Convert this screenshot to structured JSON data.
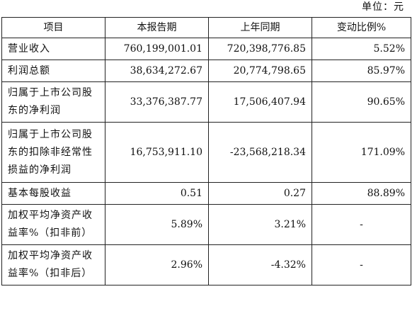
{
  "unit_label": "单位：元",
  "table": {
    "headers": [
      "项目",
      "本报告期",
      "上年同期",
      "变动比例%"
    ],
    "rows": [
      {
        "label_lines": [
          "营业收入"
        ],
        "current": "760,199,001.01",
        "previous": "720,398,776.85",
        "change": "5.52%"
      },
      {
        "label_lines": [
          "利润总额"
        ],
        "current": "38,634,272.67",
        "previous": "20,774,798.65",
        "change": "85.97%"
      },
      {
        "label_lines": [
          "归属于上市公司股",
          "东的净利润"
        ],
        "current": "33,376,387.77",
        "previous": "17,506,407.94",
        "change": "90.65%"
      },
      {
        "label_lines": [
          "归属于上市公司股",
          "东的扣除非经常性",
          "损益的净利润"
        ],
        "current": "16,753,911.10",
        "previous": "-23,568,218.34",
        "change": "171.09%"
      },
      {
        "label_lines": [
          "基本每股收益"
        ],
        "current": "0.51",
        "previous": "0.27",
        "change": "88.89%"
      },
      {
        "label_lines": [
          "加权平均净资产收",
          "益率%（扣非前）"
        ],
        "current": "5.89%",
        "previous": "3.21%",
        "change": "-"
      },
      {
        "label_lines": [
          "加权平均净资产收",
          "益率%（扣非后）"
        ],
        "current": "2.96%",
        "previous": "-4.32%",
        "change": "-"
      }
    ]
  }
}
